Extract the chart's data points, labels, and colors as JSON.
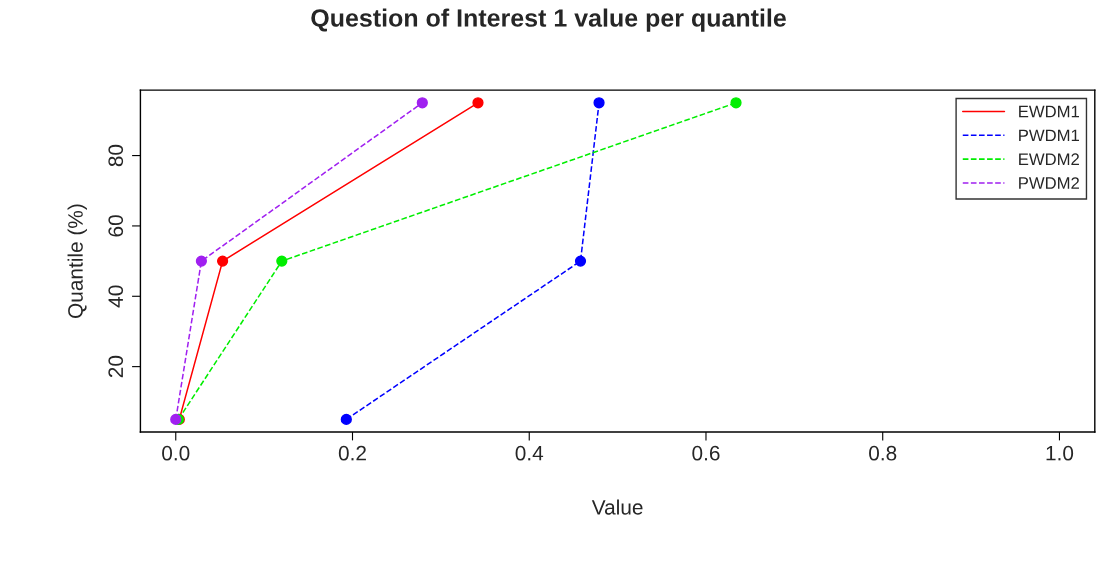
{
  "chart_data": {
    "type": "line",
    "title": "Question of Interest 1 value per quantile",
    "xlabel": "Value",
    "ylabel": "Quantile (%)",
    "xlim": [
      -0.04,
      1.04
    ],
    "ylim": [
      1.4,
      98.6
    ],
    "xticks": [
      {
        "value": 0,
        "label": "0.0"
      },
      0.2,
      0.4,
      0.6,
      0.8,
      {
        "value": 1,
        "label": "1.0"
      }
    ],
    "yticks": [
      20,
      40,
      60,
      80
    ],
    "grid": false,
    "legend": "top right",
    "marker": "circle",
    "series": [
      {
        "name": "EWDM1",
        "color": "#ff0000",
        "line_style": "solid",
        "x": [
          0.004,
          0.053,
          0.342
        ],
        "values": [
          5,
          50,
          95
        ]
      },
      {
        "name": "PWDM1",
        "color": "#0000ff",
        "line_style": "dashed",
        "x": [
          0.193,
          0.458,
          0.479
        ],
        "values": [
          5,
          50,
          95
        ]
      },
      {
        "name": "EWDM2",
        "color": "#00ee00",
        "line_style": "dashed",
        "x": [
          0.003,
          0.12,
          0.634
        ],
        "values": [
          5,
          50,
          95
        ]
      },
      {
        "name": "PWDM2",
        "color": "#a020f0",
        "line_style": "dashed",
        "x": [
          0.0,
          0.029,
          0.279
        ],
        "values": [
          5,
          50,
          95
        ]
      }
    ]
  }
}
